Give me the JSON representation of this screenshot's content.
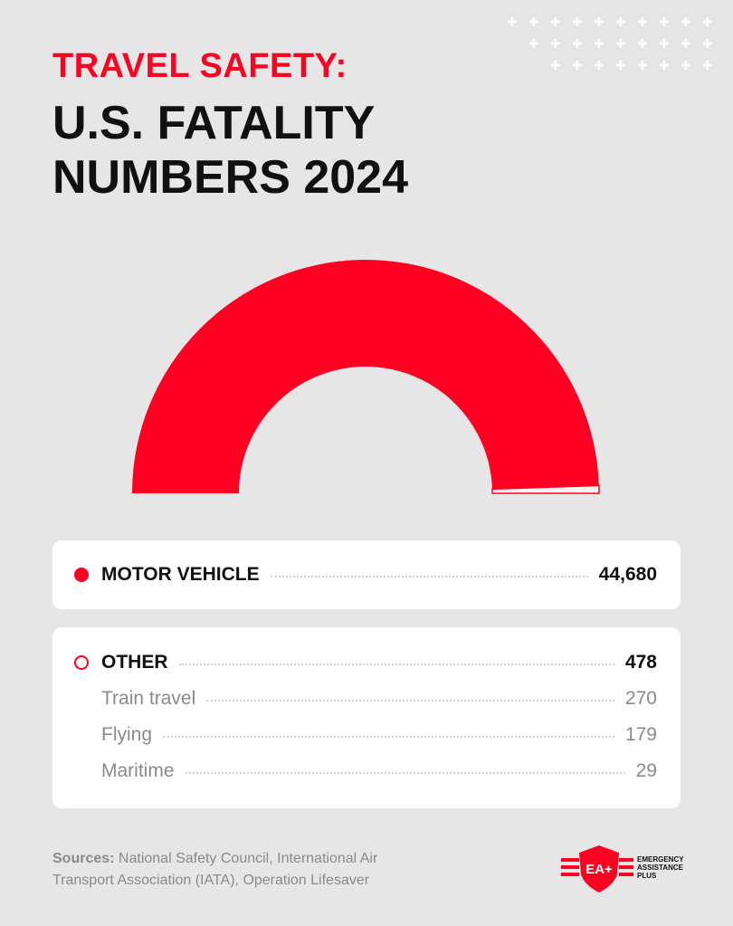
{
  "chart_data": {
    "type": "pie",
    "shape": "semi-donut",
    "supertitle": "TRAVEL SAFETY:",
    "title": "U.S. FATALITY NUMBERS 2024",
    "categories": [
      "MOTOR VEHICLE",
      "OTHER"
    ],
    "values": [
      44680,
      478
    ],
    "value_labels": [
      "44,680",
      "478"
    ],
    "colors": [
      "#ff0022",
      "#f4f4f4"
    ],
    "breakdown": {
      "categories": [
        "Train travel",
        "Flying",
        "Maritime"
      ],
      "values": [
        270,
        179,
        29
      ]
    }
  },
  "sources": {
    "label": "Sources:",
    "text": "National Safety Council, International Air Transport Association (IATA), Operation Lifesaver"
  },
  "logo": {
    "mark": "EA+",
    "lines": [
      "EMERGENCY",
      "ASSISTANCE",
      "PLUS"
    ]
  }
}
